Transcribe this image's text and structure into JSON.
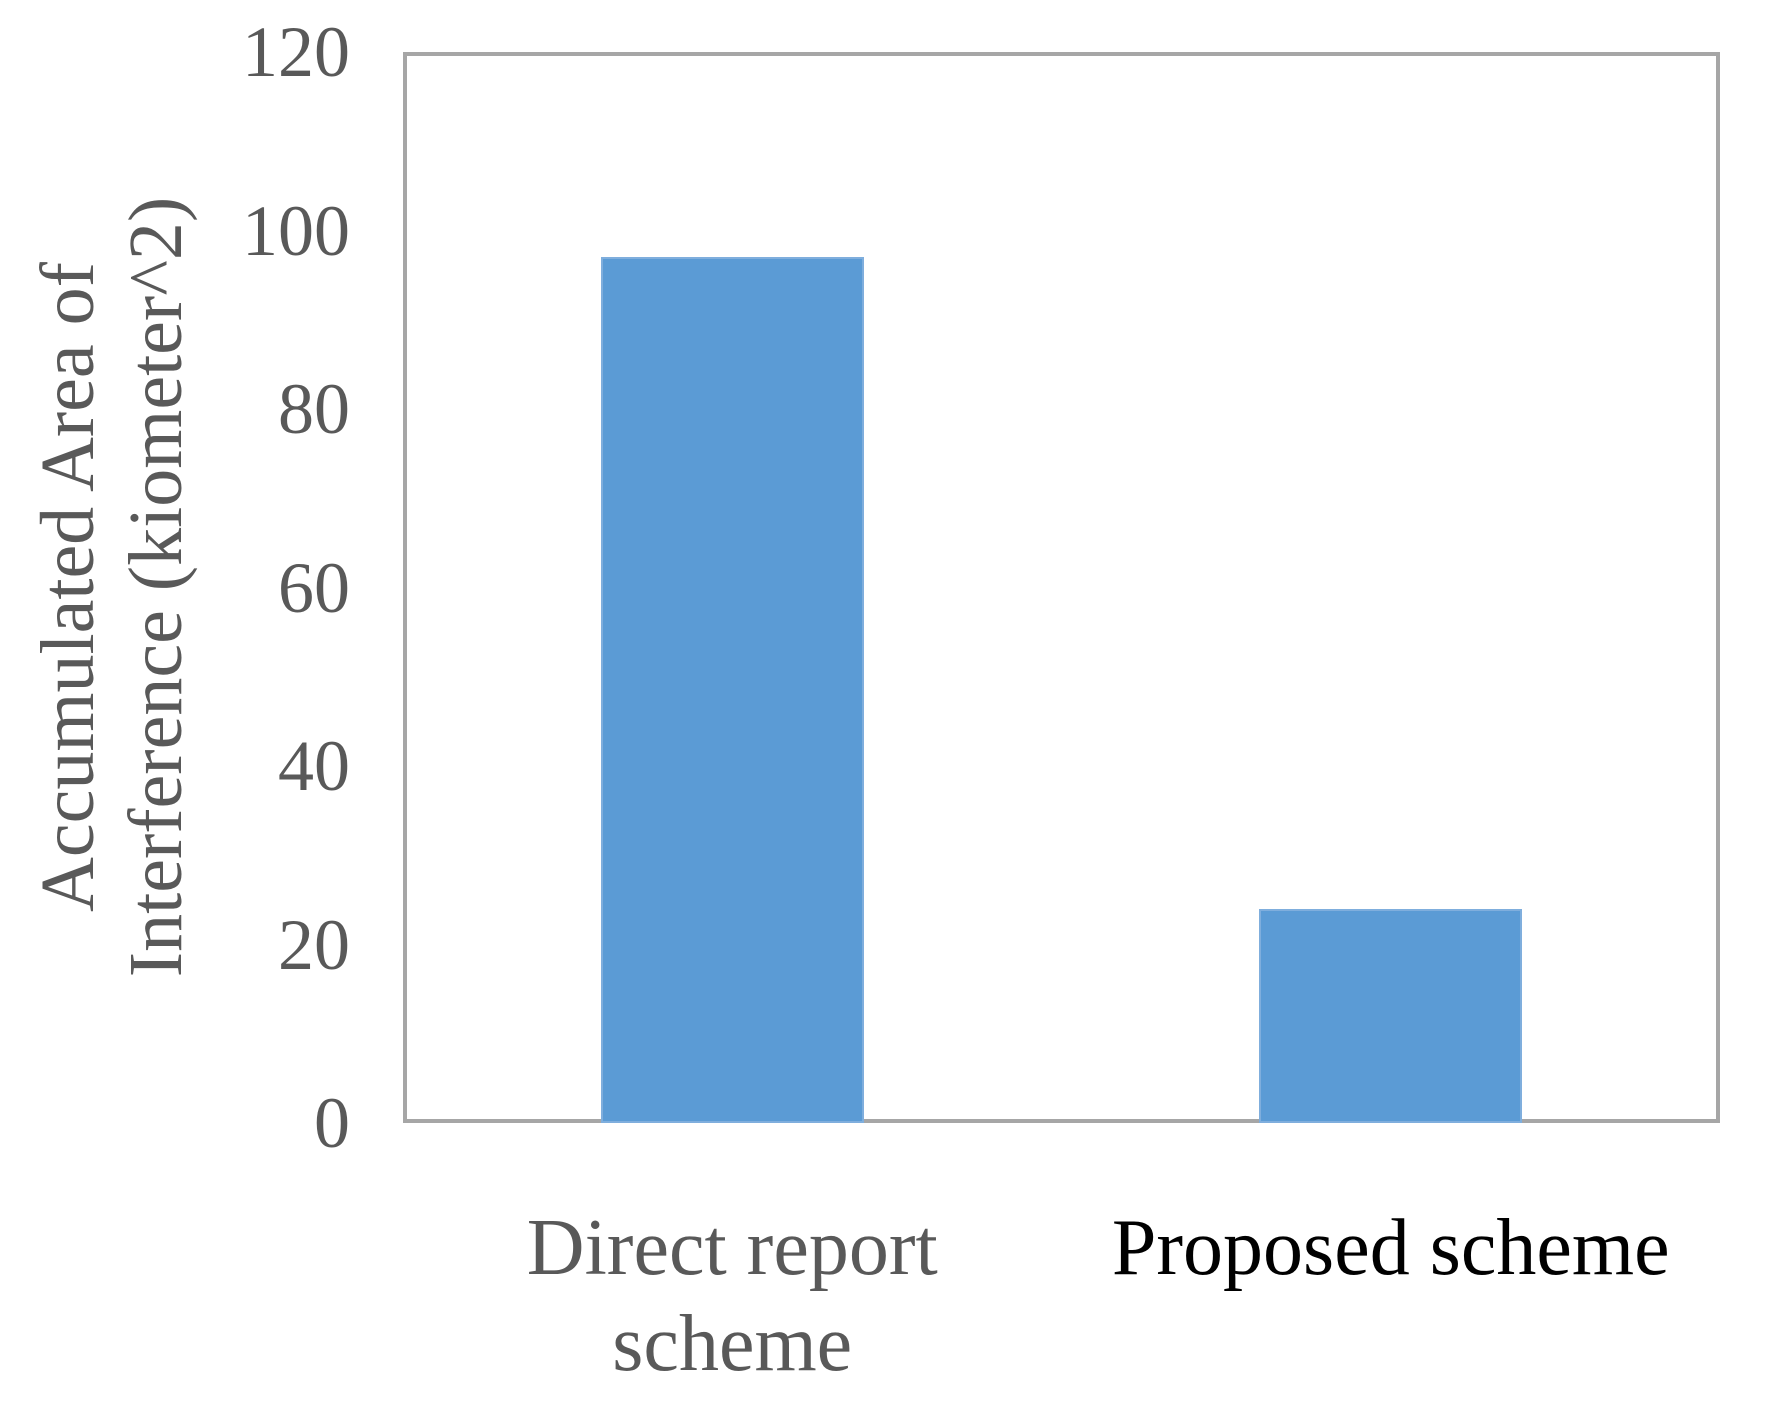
{
  "chart_data": {
    "type": "bar",
    "title": "",
    "xlabel": "",
    "ylabel": "Accumulated Area of\nInterference (kiometer^2)",
    "categories": [
      "Direct report\nscheme",
      "Proposed scheme"
    ],
    "values": [
      97,
      24
    ],
    "category_label_colors": [
      "#595959",
      "#000000"
    ],
    "yticks": [
      0,
      20,
      40,
      60,
      80,
      100,
      120
    ],
    "ylim": [
      0,
      120
    ],
    "grid": false,
    "legend": false,
    "bar_color": "#5B9BD5",
    "bar_edge_color": "#7FAEDD",
    "frame_color": "#A6A6A6",
    "tick_text_color": "#595959"
  }
}
